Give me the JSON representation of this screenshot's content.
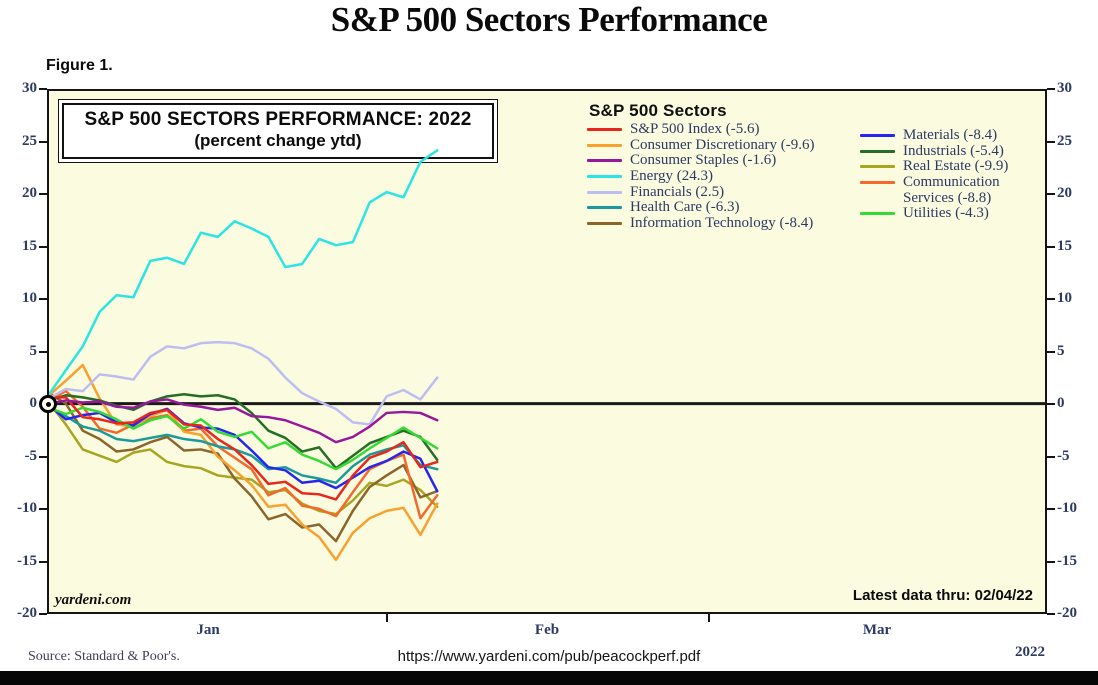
{
  "page": {
    "main_title": "S&P 500 Sectors Performance",
    "figure_label": "Figure 1.",
    "watermark": "yardeni.com",
    "latest_data_note": "Latest data thru: 02/04/22",
    "year_label": "2022",
    "source_note": "Source: Standard & Poor's.",
    "footer_url": "https://www.yardeni.com/pub/peacockperf.pdf"
  },
  "legend": {
    "title": "S&P 500 Sectors",
    "columns": [
      [
        {
          "label": "S&P 500 Index (-5.6)",
          "color": "#e8261a"
        },
        {
          "label": "Consumer Discretionary (-9.6)",
          "color": "#f9a02d"
        },
        {
          "label": "Consumer Staples (-1.6)",
          "color": "#97189b"
        },
        {
          "label": "Energy (24.3)",
          "color": "#2be4e4"
        },
        {
          "label": "Financials (2.5)",
          "color": "#bdbdf2"
        },
        {
          "label": "Health Care (-6.3)",
          "color": "#1a9a9a"
        },
        {
          "label": "Information Technology (-8.4)",
          "color": "#8b6529"
        }
      ],
      [
        {
          "label": "Materials (-8.4)",
          "color": "#2626f0"
        },
        {
          "label": "Industrials (-5.4)",
          "color": "#256e25"
        },
        {
          "label": "Real Estate (-9.9)",
          "color": "#a6a61f"
        },
        {
          "label": "Communication",
          "color": "#f4692b"
        },
        {
          "label": "Services (-8.8)",
          "color": ""
        },
        {
          "label": "Utilities (-4.3)",
          "color": "#35da35"
        }
      ]
    ]
  },
  "chart_data": {
    "type": "line",
    "title": "S&P 500 SECTORS PERFORMANCE: 2022",
    "subtitle": "(percent change ytd)",
    "ylabel": "percent change ytd",
    "ylim": [
      -20,
      30
    ],
    "yticks": [
      30,
      25,
      20,
      15,
      10,
      5,
      0,
      -5,
      -10,
      -15,
      -20
    ],
    "xticklabels": [
      "Jan",
      "Feb",
      "Mar"
    ],
    "x_axis_year": "2022",
    "grid": false,
    "plot_bg": "#fbfbe0",
    "legend_position": "top-right-inside",
    "x_dates": [
      "Jan 3",
      "Jan 4",
      "Jan 5",
      "Jan 6",
      "Jan 7",
      "Jan 10",
      "Jan 11",
      "Jan 12",
      "Jan 13",
      "Jan 14",
      "Jan 18",
      "Jan 19",
      "Jan 20",
      "Jan 21",
      "Jan 24",
      "Jan 25",
      "Jan 26",
      "Jan 27",
      "Jan 28",
      "Jan 31",
      "Feb 1",
      "Feb 2",
      "Feb 3",
      "Feb 4"
    ],
    "series": [
      {
        "name": "S&P 500 Index",
        "slug": "sp500-index",
        "color": "#e8261a",
        "ytd_pct_final": -5.6,
        "values": [
          0.6,
          0.6,
          -1.3,
          -1.5,
          -1.9,
          -1.8,
          -0.9,
          -0.6,
          -2.0,
          -2.1,
          -3.4,
          -4.4,
          -5.9,
          -7.7,
          -7.5,
          -8.6,
          -8.7,
          -9.2,
          -6.9,
          -5.2,
          -4.6,
          -3.7,
          -6.1,
          -5.6
        ]
      },
      {
        "name": "Consumer Discretionary",
        "slug": "consumer-discretionary",
        "color": "#f9a02d",
        "ytd_pct_final": -9.6,
        "values": [
          0.8,
          2.2,
          3.7,
          0.5,
          -2.0,
          -2.2,
          -1.2,
          -0.6,
          -2.7,
          -3.0,
          -5.1,
          -6.4,
          -7.8,
          -9.9,
          -9.7,
          -11.6,
          -12.8,
          -15.0,
          -12.4,
          -11.0,
          -10.3,
          -10.0,
          -12.6,
          -9.6
        ]
      },
      {
        "name": "Consumer Staples",
        "slug": "consumer-staples",
        "color": "#97189b",
        "ytd_pct_final": -1.6,
        "values": [
          0.0,
          0.3,
          0.1,
          0.2,
          -0.3,
          -0.4,
          0.2,
          0.4,
          -0.1,
          -0.3,
          -0.6,
          -0.4,
          -1.2,
          -1.3,
          -1.6,
          -2.2,
          -2.8,
          -3.7,
          -3.2,
          -2.2,
          -0.9,
          -0.8,
          -0.9,
          -1.6
        ]
      },
      {
        "name": "Energy",
        "slug": "energy",
        "color": "#2be4e4",
        "ytd_pct_final": 24.3,
        "values": [
          0.9,
          3.2,
          5.5,
          8.8,
          10.4,
          10.2,
          13.7,
          14.0,
          13.4,
          16.4,
          16.0,
          17.5,
          16.8,
          16.0,
          13.1,
          13.4,
          15.8,
          15.2,
          15.5,
          19.3,
          20.3,
          19.8,
          23.2,
          24.3
        ]
      },
      {
        "name": "Financials",
        "slug": "financials",
        "color": "#bdbdf2",
        "ytd_pct_final": 2.5,
        "values": [
          0.5,
          1.4,
          1.2,
          2.8,
          2.6,
          2.3,
          4.5,
          5.5,
          5.3,
          5.8,
          5.9,
          5.8,
          5.3,
          4.3,
          2.5,
          1.0,
          0.2,
          -0.5,
          -1.8,
          -2.0,
          0.7,
          1.3,
          0.4,
          2.5
        ]
      },
      {
        "name": "Health Care",
        "slug": "health-care",
        "color": "#1a9a9a",
        "ytd_pct_final": -6.3,
        "values": [
          -0.3,
          -1.2,
          -2.2,
          -2.6,
          -3.4,
          -3.6,
          -3.3,
          -3.0,
          -3.4,
          -3.6,
          -4.1,
          -4.4,
          -5.0,
          -6.3,
          -6.1,
          -6.9,
          -7.2,
          -7.6,
          -6.0,
          -4.9,
          -4.4,
          -4.0,
          -5.9,
          -6.3
        ]
      },
      {
        "name": "Information Technology",
        "slug": "information-technology",
        "color": "#8b6529",
        "ytd_pct_final": -8.4,
        "values": [
          1.0,
          0.0,
          -2.6,
          -3.4,
          -4.6,
          -4.4,
          -3.7,
          -3.2,
          -4.5,
          -4.4,
          -4.8,
          -7.2,
          -8.9,
          -11.1,
          -10.6,
          -11.9,
          -11.6,
          -13.2,
          -10.3,
          -8.0,
          -6.9,
          -5.9,
          -9.0,
          -8.4
        ]
      },
      {
        "name": "Materials",
        "slug": "materials",
        "color": "#2626f0",
        "ytd_pct_final": -8.4,
        "values": [
          -0.2,
          -1.5,
          -1.1,
          -0.9,
          -1.8,
          -2.1,
          -1.0,
          -0.5,
          -1.9,
          -2.3,
          -2.4,
          -3.0,
          -4.5,
          -6.1,
          -6.4,
          -7.6,
          -7.4,
          -8.1,
          -7.1,
          -6.1,
          -5.5,
          -4.6,
          -5.3,
          -8.4
        ]
      },
      {
        "name": "Industrials",
        "slug": "industrials",
        "color": "#256e25",
        "ytd_pct_final": -5.4,
        "values": [
          0.3,
          0.8,
          0.6,
          0.3,
          -0.2,
          -0.6,
          0.2,
          0.7,
          0.9,
          0.7,
          0.8,
          0.4,
          -0.9,
          -2.6,
          -3.3,
          -4.6,
          -4.2,
          -6.2,
          -5.0,
          -3.8,
          -3.2,
          -2.6,
          -3.2,
          -5.4
        ]
      },
      {
        "name": "Real Estate",
        "slug": "real-estate",
        "color": "#a6a61f",
        "ytd_pct_final": -9.9,
        "values": [
          0.1,
          -2.0,
          -4.4,
          -5.0,
          -5.6,
          -4.7,
          -4.4,
          -5.6,
          -6.0,
          -6.2,
          -6.9,
          -7.1,
          -7.3,
          -8.5,
          -8.3,
          -9.6,
          -10.3,
          -10.6,
          -9.3,
          -7.6,
          -7.9,
          -7.3,
          -8.3,
          -9.9
        ]
      },
      {
        "name": "Communication Services",
        "slug": "communication-services",
        "color": "#f4692b",
        "ytd_pct_final": -8.8,
        "values": [
          0.3,
          1.2,
          -0.3,
          -2.4,
          -2.8,
          -2.0,
          -1.4,
          -1.1,
          -2.6,
          -2.4,
          -4.1,
          -5.2,
          -6.3,
          -8.8,
          -8.1,
          -9.8,
          -10.1,
          -10.8,
          -8.5,
          -6.3,
          -5.5,
          -4.9,
          -11.0,
          -8.8
        ]
      },
      {
        "name": "Utilities",
        "slug": "utilities",
        "color": "#35da35",
        "ytd_pct_final": -4.3,
        "values": [
          -0.4,
          -1.0,
          -0.4,
          -0.8,
          -1.5,
          -2.4,
          -1.6,
          -1.2,
          -2.4,
          -1.5,
          -2.7,
          -3.2,
          -2.7,
          -4.3,
          -3.7,
          -4.9,
          -5.5,
          -6.3,
          -5.4,
          -4.3,
          -3.3,
          -2.3,
          -3.3,
          -4.3
        ]
      }
    ]
  }
}
